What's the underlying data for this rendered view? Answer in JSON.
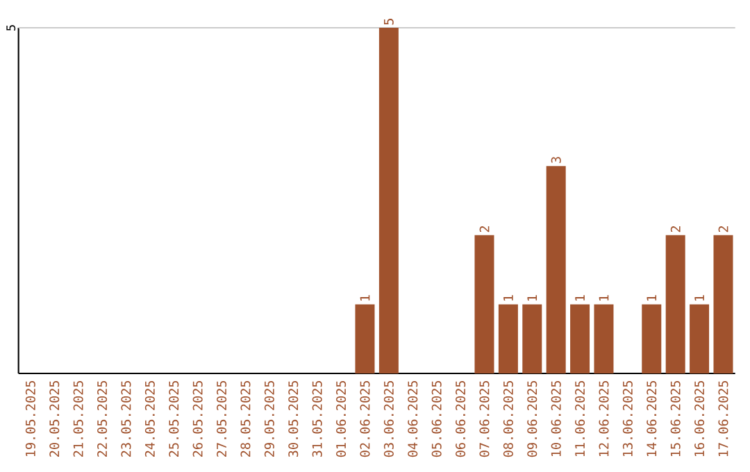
{
  "chart_data": {
    "type": "bar",
    "categories": [
      "19.05.2025",
      "20.05.2025",
      "21.05.2025",
      "22.05.2025",
      "23.05.2025",
      "24.05.2025",
      "25.05.2025",
      "26.05.2025",
      "27.05.2025",
      "28.05.2025",
      "29.05.2025",
      "30.05.2025",
      "31.05.2025",
      "01.06.2025",
      "02.06.2025",
      "03.06.2025",
      "04.06.2025",
      "05.06.2025",
      "06.06.2025",
      "07.06.2025",
      "08.06.2025",
      "09.06.2025",
      "10.06.2025",
      "11.06.2025",
      "12.06.2025",
      "13.06.2025",
      "14.06.2025",
      "15.06.2025",
      "16.06.2025",
      "17.06.2025"
    ],
    "values": [
      null,
      null,
      null,
      null,
      null,
      null,
      null,
      null,
      null,
      null,
      null,
      null,
      null,
      null,
      1,
      5,
      null,
      null,
      null,
      2,
      1,
      1,
      3,
      1,
      1,
      null,
      1,
      2,
      1,
      2
    ],
    "data_labels": true,
    "color": "#a0522d",
    "ylim": [
      0,
      5
    ],
    "ref_lines": [
      {
        "axis": "y",
        "value": 5,
        "label": "5",
        "color": "#cccccc"
      }
    ]
  }
}
